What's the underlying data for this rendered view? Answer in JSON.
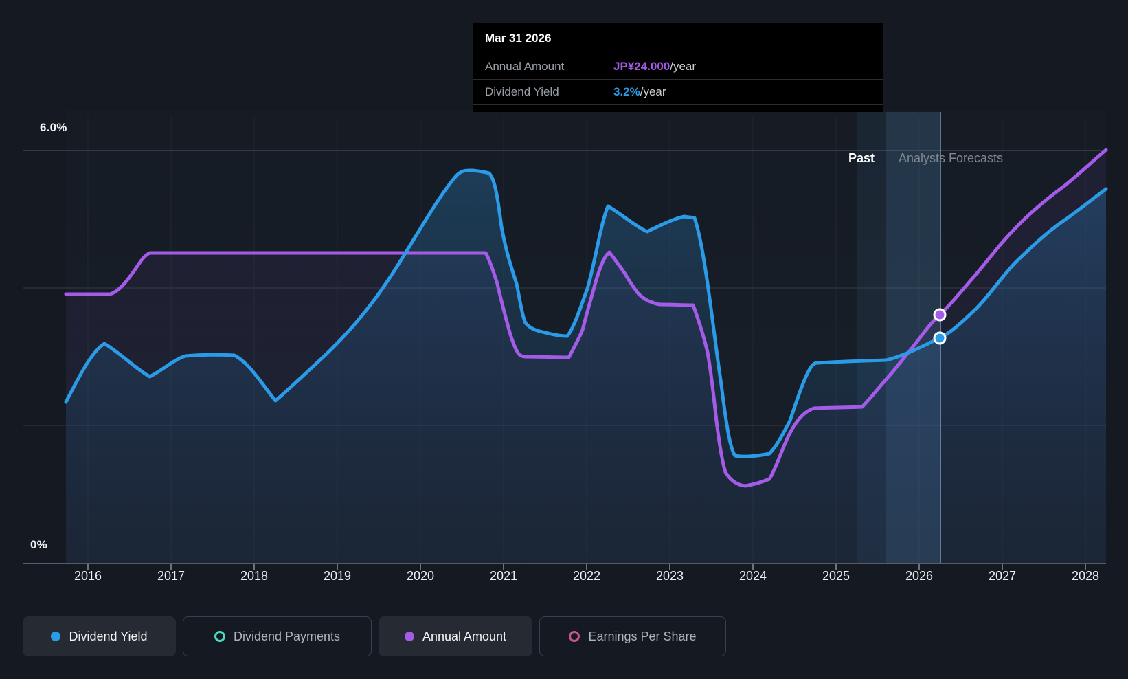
{
  "colors": {
    "background": "#151a22",
    "dividend_yield_line": "#2b9be8",
    "annual_amount_line": "#a45ce8",
    "dividend_payments": "#4fd9c1",
    "earnings_per_share": "#c9548e",
    "gridline": "#343a42",
    "axis_line": "#565d66",
    "tooltip_bg": "#000000"
  },
  "tooltip": {
    "date": "Mar 31 2026",
    "rows": [
      {
        "label": "Annual Amount",
        "value": "JP¥24.000",
        "suffix": "/year",
        "color": "#a45ce8"
      },
      {
        "label": "Dividend Yield",
        "value": "3.2%",
        "suffix": "/year",
        "color": "#2b9be8"
      }
    ]
  },
  "zones": {
    "past": "Past",
    "forecast": "Analysts Forecasts"
  },
  "y_axis": {
    "top": "6.0%",
    "bottom": "0%"
  },
  "x_axis": {
    "years": [
      "2016",
      "2017",
      "2018",
      "2019",
      "2020",
      "2021",
      "2022",
      "2023",
      "2024",
      "2025",
      "2026",
      "2027",
      "2028"
    ]
  },
  "legend": [
    {
      "label": "Dividend Yield",
      "color": "#2b9be8",
      "style": "filled",
      "active": true
    },
    {
      "label": "Dividend Payments",
      "color": "#4fd9c1",
      "style": "outline",
      "active": false
    },
    {
      "label": "Annual Amount",
      "color": "#a45ce8",
      "style": "filled",
      "active": true
    },
    {
      "label": "Earnings Per Share",
      "color": "#c9548e",
      "style": "outline",
      "active": false
    }
  ],
  "chart_data": {
    "type": "line",
    "title": "Dividend history and forecast",
    "x_axis": {
      "tick_labels": [
        "2016",
        "2017",
        "2018",
        "2019",
        "2020",
        "2021",
        "2022",
        "2023",
        "2024",
        "2025",
        "2026",
        "2027",
        "2028"
      ],
      "range": [
        2015.74,
        2028.25
      ]
    },
    "y_axis": {
      "unit": "%",
      "range": [
        0,
        6
      ],
      "gridlines": [
        0,
        2,
        4,
        6
      ],
      "top_label": "6.0%",
      "bottom_label": "0%"
    },
    "legend_position": "bottom",
    "grid": true,
    "series": [
      {
        "name": "Dividend Yield",
        "unit": "%/year",
        "color": "#2b9be8",
        "fill": "gradient-blue",
        "points": [
          [
            2015.74,
            2.34
          ],
          [
            2016.2,
            3.19
          ],
          [
            2016.74,
            2.71
          ],
          [
            2017.17,
            3.01
          ],
          [
            2017.76,
            3.02
          ],
          [
            2018.26,
            2.36
          ],
          [
            2018.83,
            2.99
          ],
          [
            2019.65,
            4.19
          ],
          [
            2020.44,
            5.64
          ],
          [
            2020.63,
            5.71
          ],
          [
            2020.83,
            5.67
          ],
          [
            2021.16,
            4.06
          ],
          [
            2021.47,
            3.36
          ],
          [
            2021.77,
            3.3
          ],
          [
            2022.26,
            5.19
          ],
          [
            2022.73,
            4.82
          ],
          [
            2023.17,
            5.04
          ],
          [
            2023.3,
            5.02
          ],
          [
            2023.79,
            1.56
          ],
          [
            2024.2,
            1.59
          ],
          [
            2024.7,
            2.84
          ],
          [
            2025.6,
            2.95
          ],
          [
            2026.25,
            3.2
          ],
          [
            2027.17,
            4.39
          ],
          [
            2028.25,
            5.44
          ]
        ]
      },
      {
        "name": "Annual Amount",
        "unit": "JP¥/year",
        "color": "#a45ce8",
        "fill": "none",
        "points": [
          [
            2015.74,
            26.0
          ],
          [
            2016.74,
            30.0
          ],
          [
            2020.78,
            30.0
          ],
          [
            2021.27,
            20.0
          ],
          [
            2021.79,
            20.0
          ],
          [
            2022.27,
            30.0
          ],
          [
            2022.62,
            26.0
          ],
          [
            2022.9,
            25.0
          ],
          [
            2023.28,
            25.0
          ],
          [
            2023.67,
            8.8
          ],
          [
            2023.91,
            7.4
          ],
          [
            2024.2,
            8.1
          ],
          [
            2024.74,
            15.0
          ],
          [
            2025.32,
            15.0
          ],
          [
            2026.25,
            24.0
          ],
          [
            2026.68,
            28.0
          ],
          [
            2027.17,
            32.5
          ],
          [
            2027.75,
            36.5
          ],
          [
            2028.25,
            40.0
          ]
        ]
      }
    ],
    "highlight": {
      "date": "Mar 31 2026",
      "x": 2026.25,
      "annual_amount_jpy": 24.0,
      "dividend_yield_percent": 3.2
    },
    "regions": {
      "past_label": "Past",
      "forecast_label": "Analysts Forecasts",
      "forecast_start_x": 2025.6
    }
  }
}
